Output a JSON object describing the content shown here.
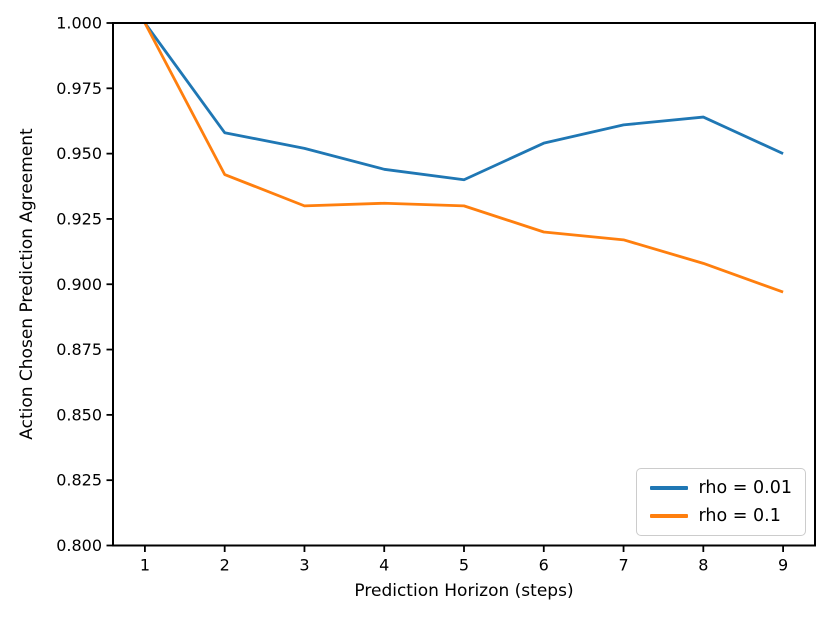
{
  "figure": {
    "background": "#ffffff",
    "axis_color": "#000000"
  },
  "chart_data": {
    "type": "line",
    "title": "",
    "xlabel": "Prediction Horizon (steps)",
    "ylabel": "Action Chosen Prediction Agreement",
    "x": [
      1,
      2,
      3,
      4,
      5,
      6,
      7,
      8,
      9
    ],
    "xtick_labels": [
      "1",
      "2",
      "3",
      "4",
      "5",
      "6",
      "7",
      "8",
      "9"
    ],
    "yticks": [
      0.8,
      0.825,
      0.85,
      0.875,
      0.9,
      0.925,
      0.95,
      0.975,
      1.0
    ],
    "ytick_labels": [
      "0.800",
      "0.825",
      "0.850",
      "0.875",
      "0.900",
      "0.925",
      "0.950",
      "0.975",
      "1.000"
    ],
    "xlim": [
      0.6,
      9.4
    ],
    "ylim": [
      0.8,
      1.0
    ],
    "grid": false,
    "legend_position": "lower right",
    "series": [
      {
        "name": "rho = 0.01",
        "color": "#1f77b4",
        "values": [
          1.0,
          0.958,
          0.952,
          0.944,
          0.94,
          0.954,
          0.961,
          0.964,
          0.95
        ]
      },
      {
        "name": "rho = 0.1",
        "color": "#ff7f0e",
        "values": [
          1.0,
          0.942,
          0.93,
          0.931,
          0.93,
          0.92,
          0.917,
          0.908,
          0.897
        ]
      }
    ]
  }
}
